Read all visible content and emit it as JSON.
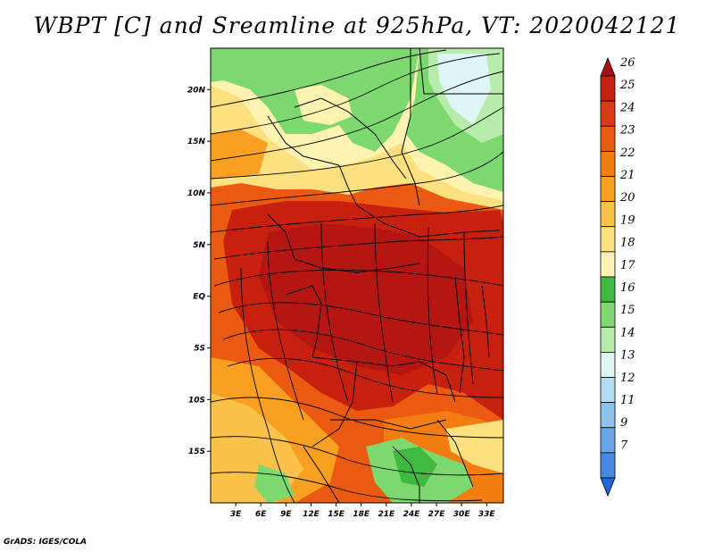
{
  "title": "WBPT [C] and Sreamline at 925hPa, VT: 2020042121",
  "credit": "GrADS: IGES/COLA",
  "map": {
    "lon_range": [
      0,
      35
    ],
    "lat_range": [
      -20,
      24
    ],
    "x_ticks": [
      "3E",
      "6E",
      "9E",
      "12E",
      "15E",
      "18E",
      "21E",
      "24E",
      "27E",
      "30E",
      "33E"
    ],
    "y_ticks": [
      "20N",
      "15N",
      "10N",
      "5N",
      "EQ",
      "5S",
      "10S",
      "15S"
    ]
  },
  "colorbar": {
    "labels": [
      "26",
      "25",
      "24",
      "23",
      "22",
      "21",
      "20",
      "19",
      "18",
      "17",
      "16",
      "15",
      "14",
      "13",
      "12",
      "11",
      "9",
      "7"
    ],
    "colors": [
      "#a50f15",
      "#c8200f",
      "#dc3a0f",
      "#ec5a12",
      "#f47d12",
      "#f9a020",
      "#fbc24a",
      "#fde07f",
      "#fef3b0",
      "#3fba3f",
      "#7ed870",
      "#b7ecaa",
      "#dff5f6",
      "#b2dcf4",
      "#8ec3ee",
      "#6aa6ea",
      "#4589e2",
      "#1f66d8"
    ]
  },
  "colors": {
    "frame": "#000000",
    "border": "#000000"
  }
}
